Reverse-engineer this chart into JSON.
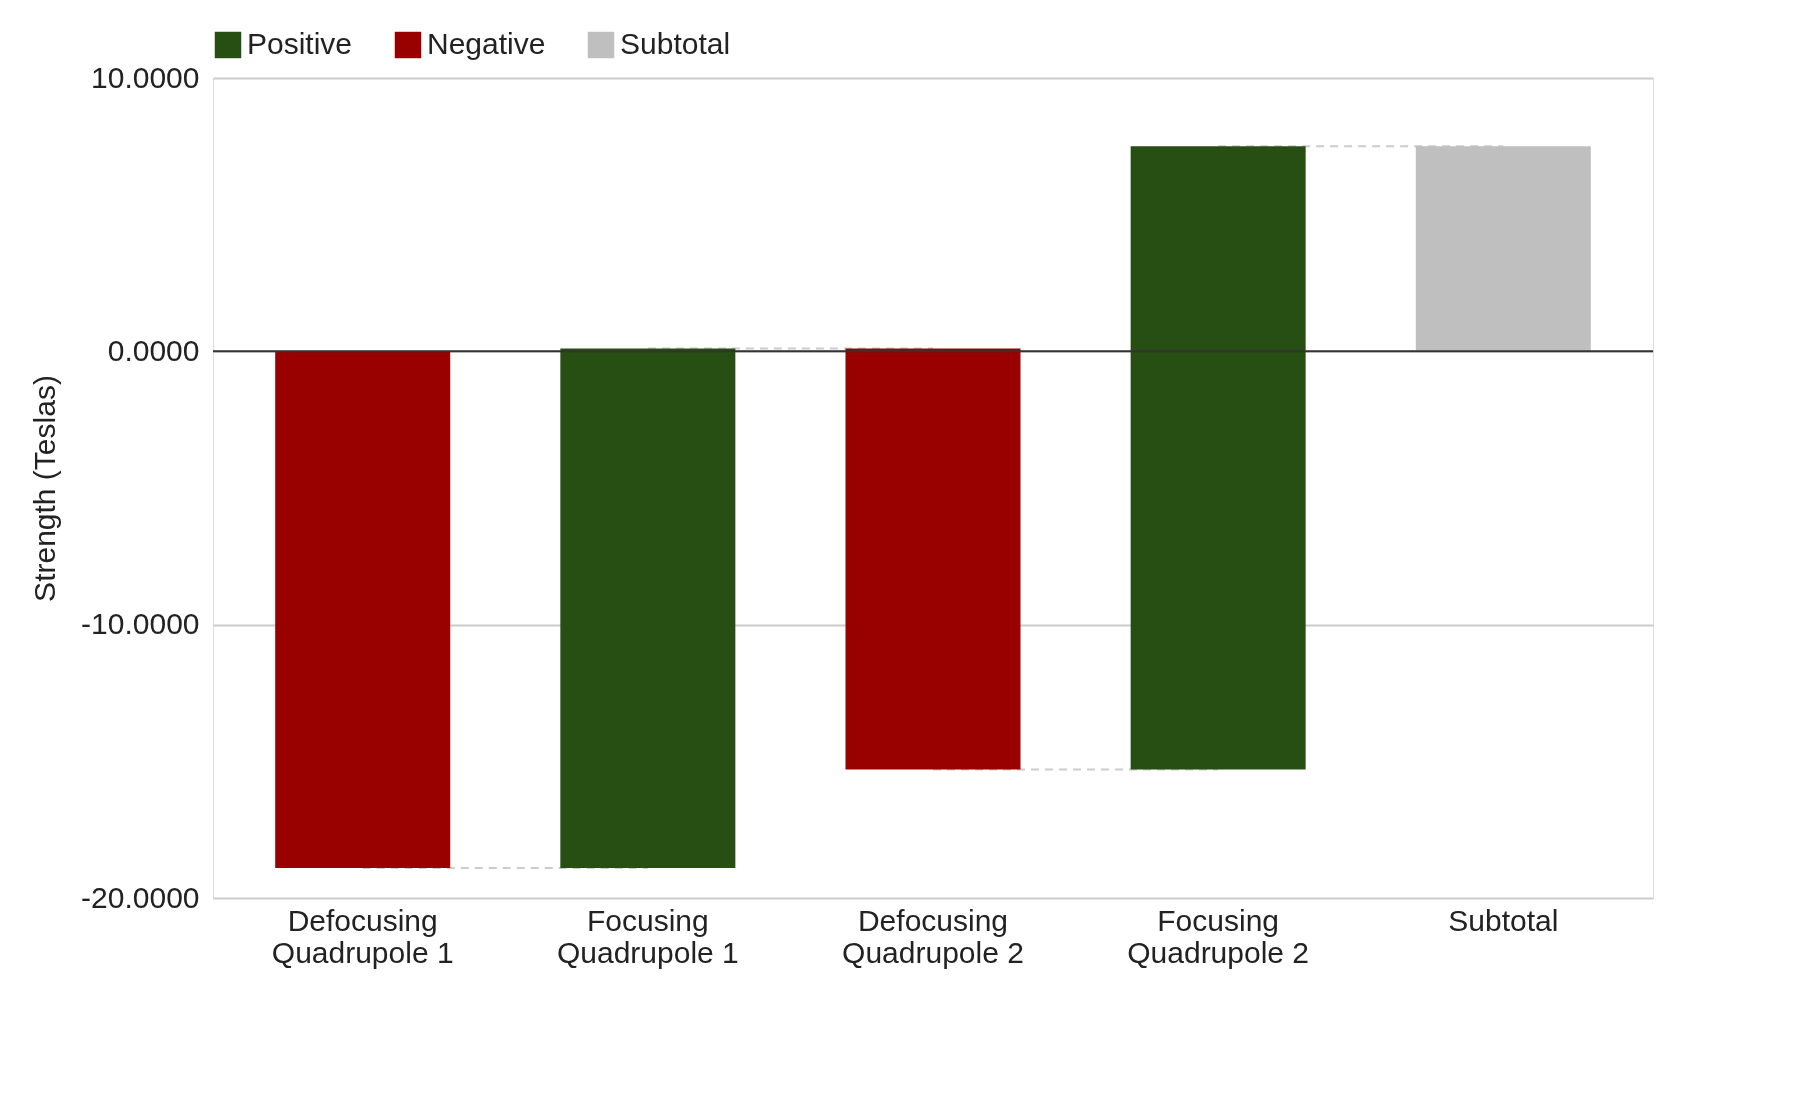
{
  "chart_data": {
    "type": "bar",
    "ylabel": "Strength (Teslas)",
    "categories": [
      "Defocusing Quadrupole 1",
      "Focusing Quadrupole 1",
      "Defocusing Quadrupole 2",
      "Focusing Quadrupole 2",
      "Subtotal"
    ],
    "series": [
      {
        "name": "Positive",
        "color": "#274e13",
        "values": [
          null,
          19.0,
          null,
          22.8,
          null
        ],
        "base": [
          null,
          -18.9,
          null,
          -15.3,
          null
        ]
      },
      {
        "name": "Negative",
        "color": "#990000",
        "values": [
          -18.9,
          null,
          -15.4,
          null,
          null
        ],
        "base": [
          0,
          null,
          0.1,
          null,
          null
        ]
      },
      {
        "name": "Subtotal",
        "color": "#bfbfbf",
        "values": [
          null,
          null,
          null,
          null,
          7.5
        ],
        "base": [
          null,
          null,
          null,
          null,
          0
        ]
      }
    ],
    "ylim": [
      -20,
      10
    ],
    "yticks": [
      {
        "value": -20,
        "label": "-20.0000"
      },
      {
        "value": -10,
        "label": "-10.0000"
      },
      {
        "value": 0,
        "label": "0.0000"
      },
      {
        "value": 10,
        "label": "10.0000"
      }
    ],
    "ref_lines": [
      {
        "axis": "y",
        "value": 0,
        "color": "#333333"
      }
    ],
    "grid": "y",
    "legend": "top"
  }
}
